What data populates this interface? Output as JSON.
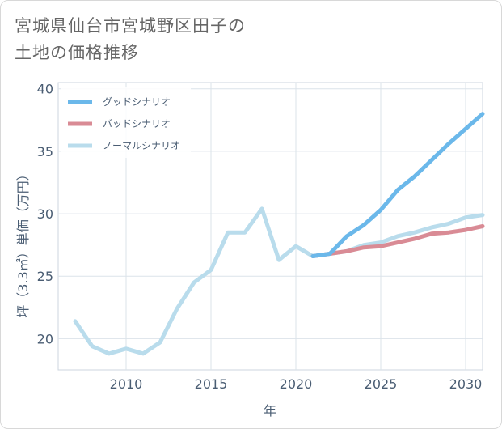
{
  "title_lines": [
    "宮城県仙台市宮城野区田子の",
    "土地の価格推移"
  ],
  "chart_data": {
    "type": "line",
    "title": "宮城県仙台市宮城野区田子の土地の価格推移",
    "xlabel": "年",
    "ylabel": "坪（3.3㎡）単価（万円）",
    "xlim": [
      2006,
      2031
    ],
    "ylim": [
      17.5,
      40.5
    ],
    "xticks": [
      2010,
      2015,
      2020,
      2025,
      2030
    ],
    "yticks": [
      20,
      25,
      30,
      35,
      40
    ],
    "grid": true,
    "legend_position": "top-left",
    "series": [
      {
        "name": "グッドシナリオ",
        "color": "#6bb8ea",
        "x": [
          2021,
          2022,
          2023,
          2024,
          2025,
          2026,
          2027,
          2028,
          2029,
          2030,
          2031
        ],
        "y": [
          26.6,
          26.8,
          28.2,
          29.1,
          30.3,
          31.9,
          33.0,
          34.3,
          35.6,
          36.8,
          38.0
        ]
      },
      {
        "name": "バッドシナリオ",
        "color": "#d98b95",
        "x": [
          2021,
          2022,
          2023,
          2024,
          2025,
          2026,
          2027,
          2028,
          2029,
          2030,
          2031
        ],
        "y": [
          26.6,
          26.8,
          27.0,
          27.3,
          27.4,
          27.7,
          28.0,
          28.4,
          28.5,
          28.7,
          29.0
        ]
      },
      {
        "name": "ノーマルシナリオ",
        "color": "#b9dcec",
        "x": [
          2007,
          2008,
          2009,
          2010,
          2011,
          2012,
          2013,
          2014,
          2015,
          2016,
          2017,
          2018,
          2019,
          2020,
          2021,
          2022,
          2023,
          2024,
          2025,
          2026,
          2027,
          2028,
          2029,
          2030,
          2031
        ],
        "y": [
          21.4,
          19.4,
          18.8,
          19.2,
          18.8,
          19.7,
          22.4,
          24.5,
          25.5,
          28.5,
          28.5,
          30.4,
          26.3,
          27.4,
          26.6,
          26.8,
          27.0,
          27.5,
          27.7,
          28.2,
          28.5,
          28.9,
          29.2,
          29.7,
          29.9
        ]
      }
    ]
  }
}
